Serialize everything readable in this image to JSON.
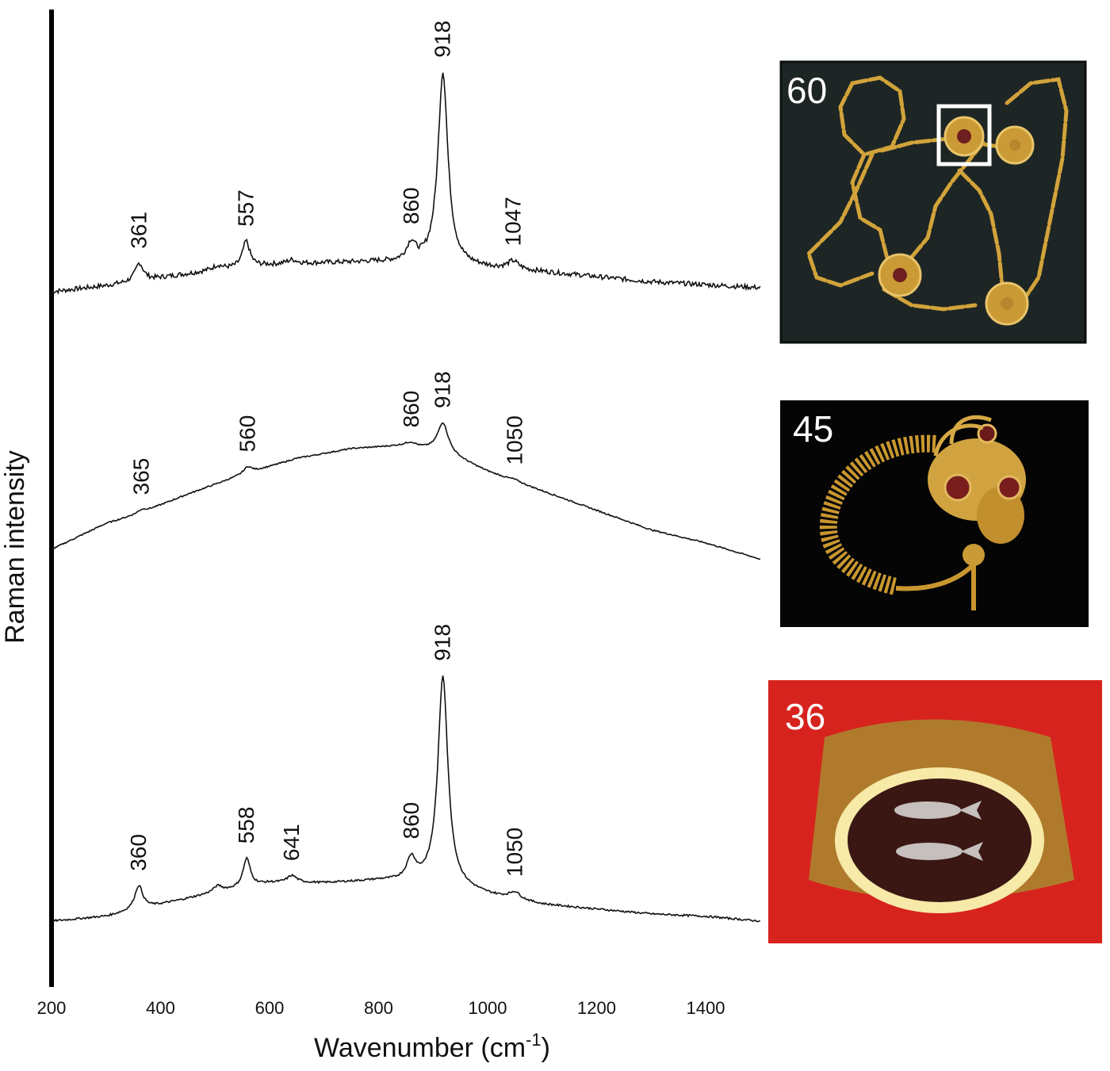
{
  "chart_data": {
    "type": "line",
    "xlabel": "Wavenumber (cm",
    "xlabel_superscript": "-1",
    "xlabel_close": ")",
    "ylabel": "Raman intensity",
    "xlim": [
      200,
      1500
    ],
    "x_ticks": [
      200,
      400,
      600,
      800,
      1000,
      1200,
      1400
    ],
    "y_ticks": [],
    "grid": false,
    "series": [
      {
        "baseline": [
          [
            200,
            0.0
          ],
          [
            300,
            0.03
          ],
          [
            400,
            0.07
          ],
          [
            500,
            0.11
          ],
          [
            600,
            0.135
          ],
          [
            700,
            0.145
          ],
          [
            800,
            0.15
          ],
          [
            900,
            0.14
          ],
          [
            1000,
            0.12
          ],
          [
            1100,
            0.1
          ],
          [
            1200,
            0.075
          ],
          [
            1300,
            0.05
          ],
          [
            1400,
            0.035
          ],
          [
            1500,
            0.02
          ]
        ],
        "peaks": [
          {
            "position": 361,
            "height": 0.09,
            "width": 9
          },
          {
            "position": 505,
            "height": 0.02,
            "width": 10
          },
          {
            "position": 557,
            "height": 0.13,
            "width": 8
          },
          {
            "position": 641,
            "height": 0.02,
            "width": 12
          },
          {
            "position": 860,
            "height": 0.09,
            "width": 10
          },
          {
            "position": 918,
            "height": 0.97,
            "width": 11
          },
          {
            "position": 1047,
            "height": 0.04,
            "width": 12
          }
        ],
        "noise": 0.012,
        "labels": [
          "361",
          "557",
          "860",
          "918",
          "1047"
        ],
        "label_positions": [
          361,
          557,
          860,
          918,
          1047
        ]
      },
      {
        "baseline": [
          [
            200,
            0.0
          ],
          [
            250,
            0.04
          ],
          [
            300,
            0.08
          ],
          [
            360,
            0.11
          ],
          [
            450,
            0.17
          ],
          [
            550,
            0.23
          ],
          [
            650,
            0.28
          ],
          [
            750,
            0.31
          ],
          [
            850,
            0.32
          ],
          [
            918,
            0.3
          ],
          [
            1000,
            0.24
          ],
          [
            1100,
            0.18
          ],
          [
            1200,
            0.12
          ],
          [
            1300,
            0.06
          ],
          [
            1400,
            0.02
          ],
          [
            1500,
            -0.03
          ]
        ],
        "peaks": [
          {
            "position": 365,
            "height": 0.01,
            "width": 10
          },
          {
            "position": 560,
            "height": 0.02,
            "width": 9
          },
          {
            "position": 860,
            "height": 0.01,
            "width": 10
          },
          {
            "position": 918,
            "height": 0.09,
            "width": 12
          },
          {
            "position": 1050,
            "height": 0.005,
            "width": 12
          }
        ],
        "noise": 0.002,
        "labels": [
          "365",
          "560",
          "860",
          "918",
          "1050"
        ],
        "label_positions": [
          365,
          560,
          860,
          918,
          1050
        ]
      },
      {
        "baseline": [
          [
            200,
            0.0
          ],
          [
            300,
            0.02
          ],
          [
            400,
            0.07
          ],
          [
            500,
            0.12
          ],
          [
            600,
            0.16
          ],
          [
            700,
            0.16
          ],
          [
            800,
            0.17
          ],
          [
            900,
            0.16
          ],
          [
            1000,
            0.11
          ],
          [
            1100,
            0.07
          ],
          [
            1200,
            0.05
          ],
          [
            1300,
            0.03
          ],
          [
            1400,
            0.02
          ],
          [
            1500,
            0.0
          ]
        ],
        "peaks": [
          {
            "position": 360,
            "height": 0.1,
            "width": 9
          },
          {
            "position": 505,
            "height": 0.025,
            "width": 10
          },
          {
            "position": 558,
            "height": 0.12,
            "width": 8
          },
          {
            "position": 641,
            "height": 0.03,
            "width": 11
          },
          {
            "position": 860,
            "height": 0.09,
            "width": 10
          },
          {
            "position": 918,
            "height": 0.88,
            "width": 11
          },
          {
            "position": 1050,
            "height": 0.03,
            "width": 12
          }
        ],
        "noise": 0.004,
        "labels": [
          "360",
          "558",
          "641",
          "860",
          "918",
          "1050"
        ],
        "label_positions": [
          360,
          558,
          641,
          860,
          918,
          1050
        ]
      }
    ]
  },
  "photos": [
    {
      "label": "60",
      "subject": "gold chain necklace with garnet-set discs",
      "background": "#1d2424",
      "highlight_box": true
    },
    {
      "label": "45",
      "subject": "gold earring with animal head and garnet eyes",
      "background": "#050505"
    },
    {
      "label": "36",
      "subject": "gold finger ring with engraved gem showing two fish",
      "background": "#d9231f"
    }
  ],
  "colors": {
    "line": "#111111",
    "axis": "#000000",
    "gold": "#d4a437",
    "garnet": "#7a1d1d"
  }
}
